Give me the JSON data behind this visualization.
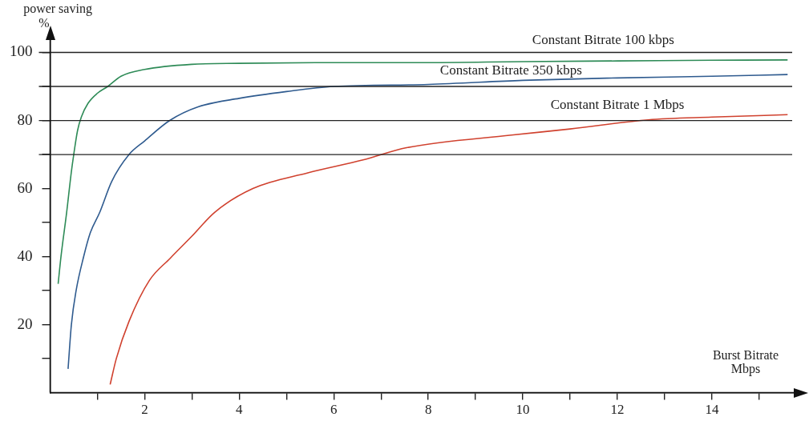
{
  "chart_data": {
    "type": "line",
    "xlabel": "Burst Bitrate\nMbps",
    "ylabel": "power saving\n%",
    "xlim": [
      0,
      15.9
    ],
    "ylim": [
      0,
      106
    ],
    "xticks": [
      {
        "value": 1,
        "label": null
      },
      2,
      {
        "value": 3,
        "label": null
      },
      4,
      {
        "value": 5,
        "label": null
      },
      6,
      {
        "value": 7,
        "label": null
      },
      8,
      {
        "value": 9,
        "label": null
      },
      10,
      {
        "value": 11,
        "label": null
      },
      12,
      {
        "value": 13,
        "label": null
      },
      14,
      {
        "value": 15,
        "label": null
      }
    ],
    "yticks": [
      {
        "value": 10,
        "label": null
      },
      20,
      {
        "value": 30,
        "label": null
      },
      40,
      {
        "value": 50,
        "label": null
      },
      60,
      {
        "value": 70,
        "label": null
      },
      80,
      {
        "value": 90,
        "label": null
      },
      100
    ],
    "grid": false,
    "legend": false,
    "marker": "none",
    "line_style": "solid",
    "ref_lines": [
      {
        "axis": "y",
        "value": 100,
        "color": "#222222"
      },
      {
        "axis": "y",
        "value": 90,
        "color": "#222222"
      },
      {
        "axis": "y",
        "value": 80,
        "color": "#222222"
      },
      {
        "axis": "y",
        "value": 70,
        "color": "#222222"
      }
    ],
    "series": [
      {
        "name": "Constant Bitrate 100 kbps",
        "color": "#2e8b57",
        "x": [
          0.17,
          0.23,
          0.35,
          0.45,
          0.5,
          0.58,
          0.66,
          0.8,
          1.0,
          1.22,
          1.5,
          2,
          3,
          4,
          6,
          8,
          10,
          12,
          14,
          15.6
        ],
        "values": [
          32,
          40,
          53,
          65,
          70,
          77,
          81,
          85,
          88,
          90,
          93,
          95,
          96.5,
          96.8,
          97,
          97,
          97.3,
          97.5,
          97.7,
          97.8
        ]
      },
      {
        "name": "Constant Bitrate 350 kbps",
        "color": "#2f5b8f",
        "x": [
          0.38,
          0.45,
          0.55,
          0.71,
          0.85,
          1.05,
          1.3,
          1.67,
          2,
          2.53,
          3.13,
          4,
          5,
          6,
          8,
          10,
          12,
          14,
          15.6
        ],
        "values": [
          7,
          20,
          30,
          40,
          47,
          53,
          62,
          70,
          74,
          80,
          84,
          86.5,
          88.5,
          90,
          90.6,
          91.8,
          92.5,
          93,
          93.5
        ]
      },
      {
        "name": "Constant Bitrate 1 Mbps",
        "color": "#d0412e",
        "x": [
          1.27,
          1.4,
          1.67,
          2.1,
          2.54,
          3,
          3.48,
          4.29,
          5.45,
          6.62,
          7.54,
          9.76,
          11,
          12.65,
          14,
          15.6
        ],
        "values": [
          2.4,
          10,
          21,
          33,
          39.5,
          46,
          53,
          60,
          64.6,
          68.4,
          72,
          75.7,
          77.5,
          80.2,
          81,
          81.7
        ]
      }
    ]
  }
}
